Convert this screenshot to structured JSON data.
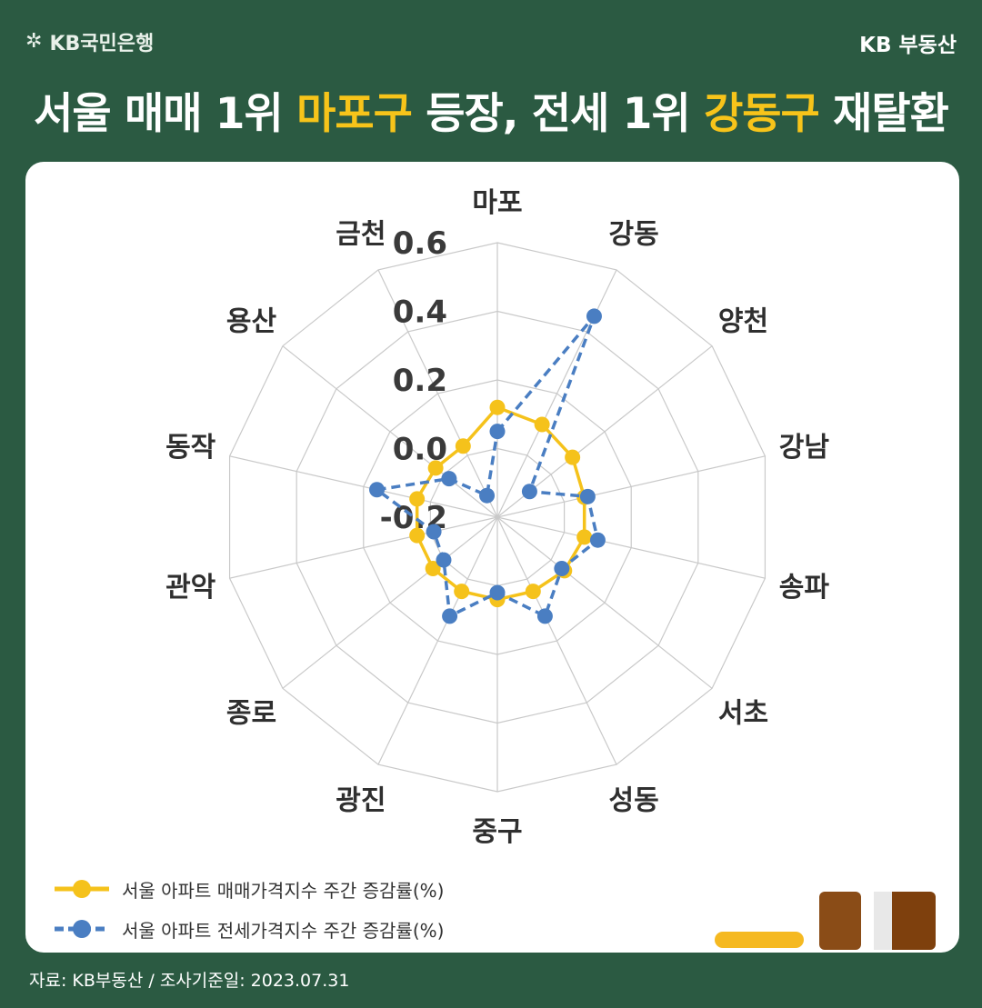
{
  "header": {
    "logo_text": "KB국민은행",
    "brand": "KB 부동산",
    "title_parts": [
      {
        "text": "서울 매매 1위 ",
        "highlight": false
      },
      {
        "text": "마포구",
        "highlight": true
      },
      {
        "text": " 등장, 전세 1위 ",
        "highlight": false
      },
      {
        "text": "강동구",
        "highlight": true
      },
      {
        "text": " 재탈환",
        "highlight": false
      }
    ]
  },
  "colors": {
    "background": "#2b5a42",
    "accent": "#f7c41a",
    "sale_series": "#f5c21b",
    "jeonse_series": "#4a7ec2"
  },
  "chart_data": {
    "type": "radar",
    "categories": [
      "마포",
      "강동",
      "양천",
      "강남",
      "송파",
      "서초",
      "성동",
      "중구",
      "광진",
      "종로",
      "관악",
      "동작",
      "용산",
      "금천"
    ],
    "axis_ticks": [
      "0.6",
      "0.4",
      "0.2",
      "0.0",
      "-0.2"
    ],
    "range": [
      -0.2,
      0.6
    ],
    "grid": true,
    "legend_position": "bottom-left",
    "series": [
      {
        "name": "서울 아파트 매매가격지수 주간 증감률(%)",
        "style": "solid",
        "values": [
          0.12,
          0.1,
          0.08,
          0.06,
          0.06,
          0.05,
          0.04,
          0.04,
          0.04,
          0.04,
          0.04,
          0.04,
          0.03,
          0.03
        ]
      },
      {
        "name": "서울 아파트 전세가격지수 주간 증감률(%)",
        "style": "dashed",
        "values": [
          0.05,
          0.45,
          -0.08,
          0.07,
          0.1,
          0.04,
          0.12,
          0.02,
          0.12,
          0.0,
          -0.01,
          0.16,
          -0.02,
          -0.13
        ]
      }
    ]
  },
  "source": "자료: KB부동산 / 조사기준일: 2023.07.31",
  "decoration_icons": [
    "pencil-bar-icon",
    "book-icon"
  ]
}
